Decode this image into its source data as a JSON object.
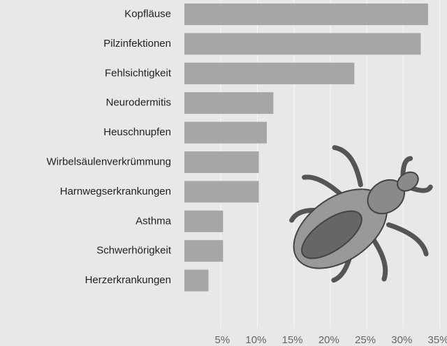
{
  "chart_data": {
    "type": "bar",
    "orientation": "horizontal",
    "categories": [
      "Kopfläuse",
      "Pilzinfektionen",
      "Fehlsichtigkeit",
      "Neurodermitis",
      "Heuschnupfen",
      "Wirbelsäulenverkrümmung",
      "Harnwegserkrankungen",
      "Asthma",
      "Schwerhörigkeit",
      "Herzerkrankungen"
    ],
    "values": [
      33.4,
      32.4,
      23.3,
      12.2,
      11.3,
      10.2,
      10.2,
      5.3,
      5.3,
      3.3
    ],
    "color": "#a6a6a6",
    "xlim": [
      0,
      36
    ],
    "xticks": [
      {
        "value": 5,
        "label": "5%"
      },
      {
        "value": 10,
        "label": "10%"
      },
      {
        "value": 15,
        "label": "15%"
      },
      {
        "value": 20,
        "label": "20%"
      },
      {
        "value": 25,
        "label": "25%"
      },
      {
        "value": 30,
        "label": "30%"
      },
      {
        "value": 35,
        "label": "35%"
      }
    ],
    "grid": true
  }
}
